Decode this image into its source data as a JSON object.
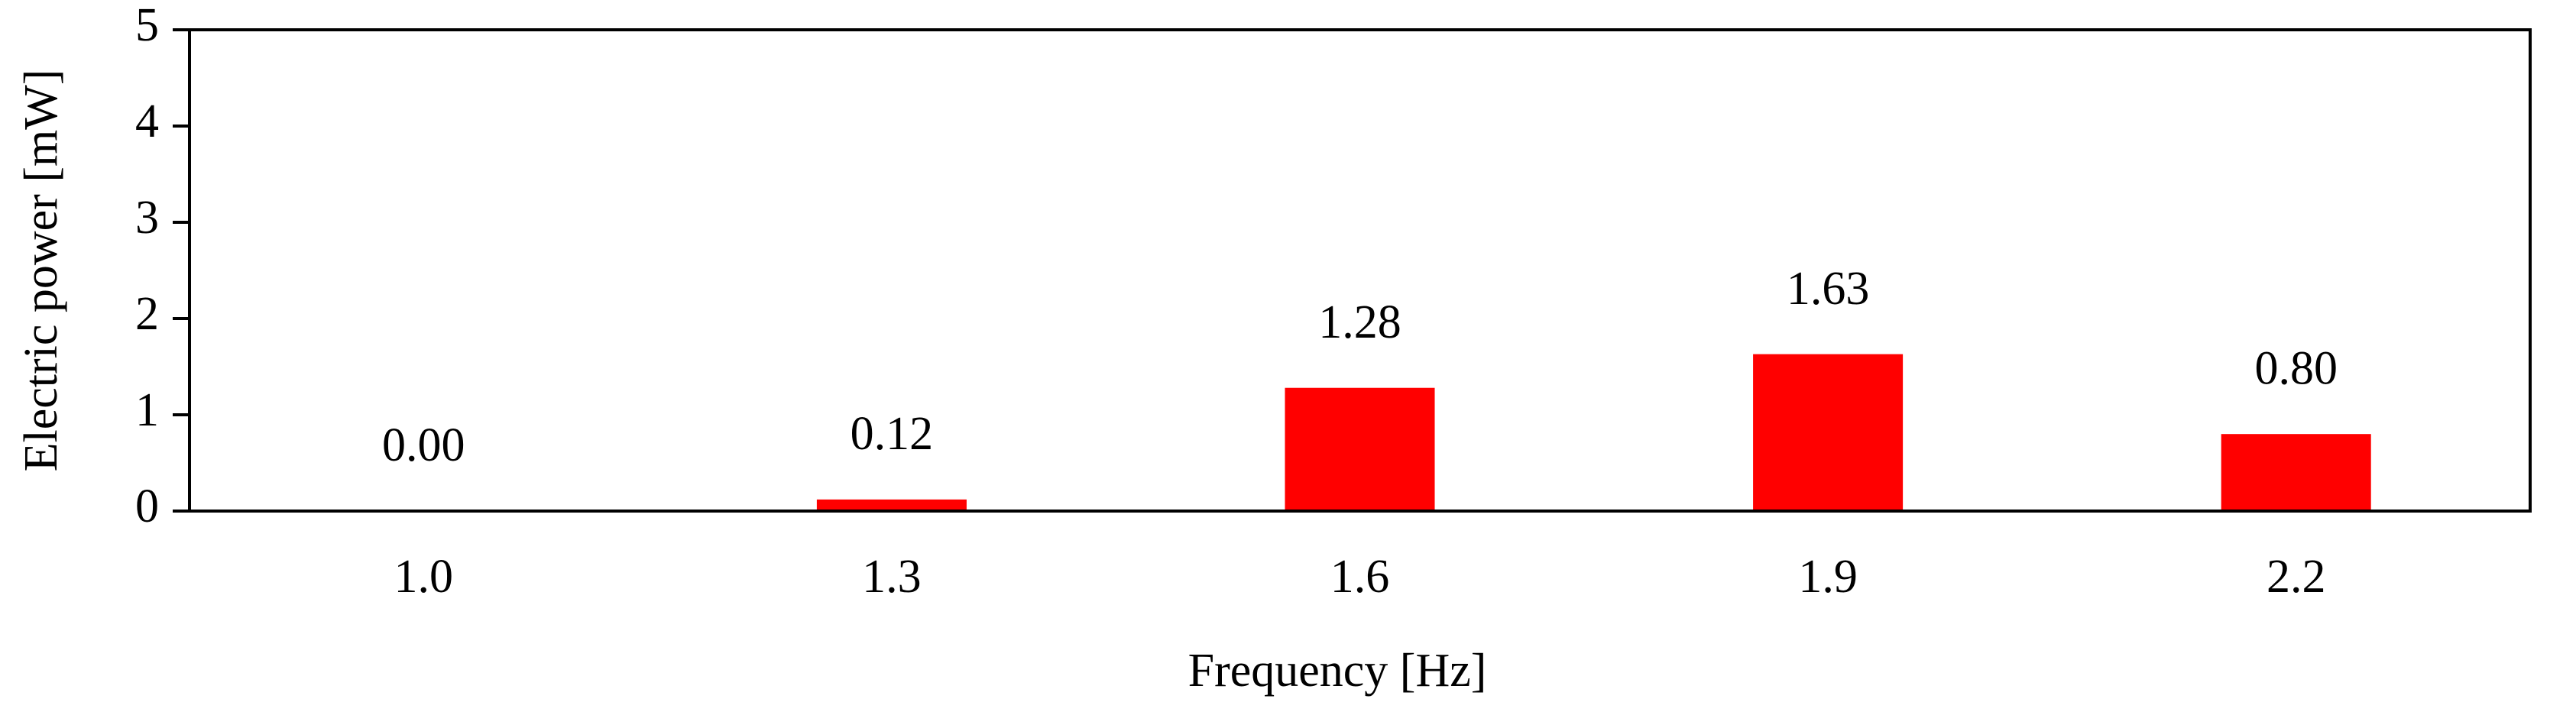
{
  "chart_data": {
    "type": "bar",
    "xlabel": "Frequency [Hz]",
    "ylabel": "Electric power [mW]",
    "categories": [
      "1.0",
      "1.3",
      "1.6",
      "1.9",
      "2.2"
    ],
    "values": [
      0,
      0.12,
      1.28,
      1.63,
      0.8
    ],
    "value_labels": [
      "0.00",
      "0.12",
      "1.28",
      "1.63",
      "0.80"
    ],
    "color": "#ff0000",
    "ylim": [
      0,
      5
    ],
    "yticks": [
      0,
      1,
      2,
      3,
      4,
      5
    ],
    "grid": false
  }
}
